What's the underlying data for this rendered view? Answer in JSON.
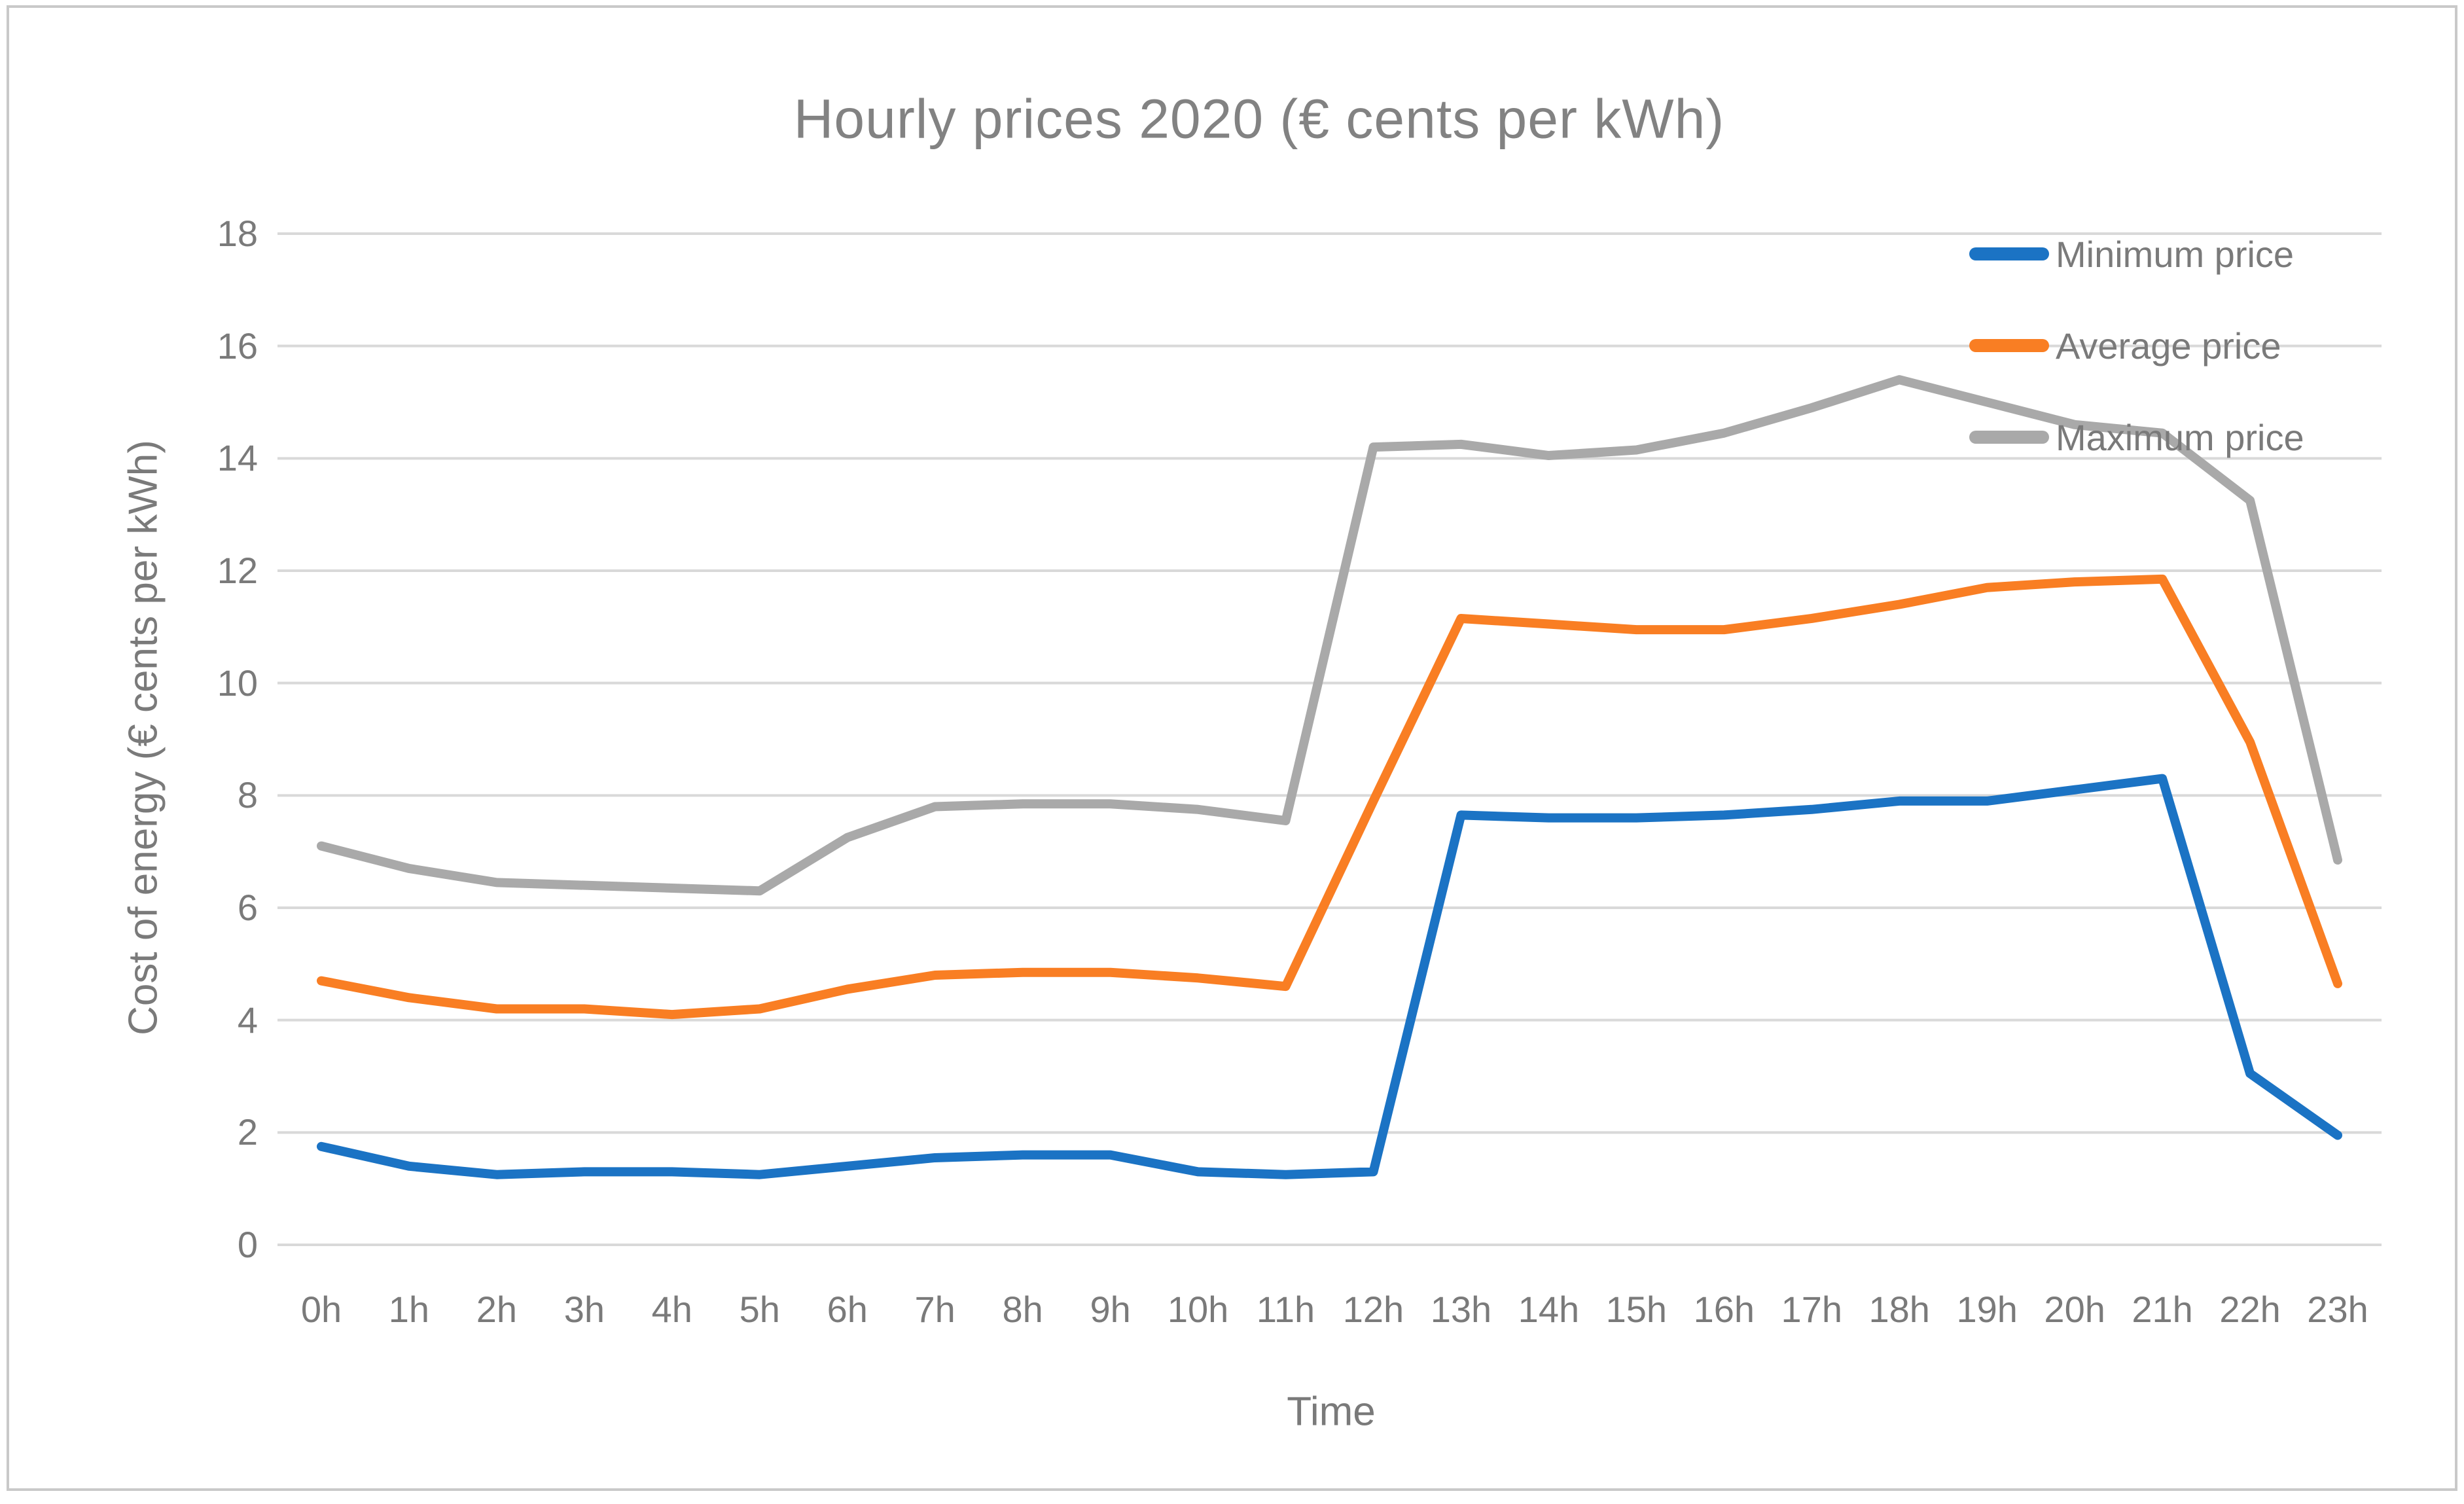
{
  "chart_data": {
    "type": "line",
    "title": "Hourly prices 2020 (€ cents per kWh)",
    "xlabel": "Time",
    "ylabel": "Cost of energy (€ cents per kWh)",
    "ylim": [
      0,
      18
    ],
    "ytick_step": 2,
    "grid": true,
    "legend_position": "top-right",
    "categories": [
      "0h",
      "1h",
      "2h",
      "3h",
      "4h",
      "5h",
      "6h",
      "7h",
      "8h",
      "9h",
      "10h",
      "11h",
      "12h",
      "13h",
      "14h",
      "15h",
      "16h",
      "17h",
      "18h",
      "19h",
      "20h",
      "21h",
      "22h",
      "23h"
    ],
    "series": [
      {
        "name": "Minimum price",
        "color": "#1B73C4",
        "values": [
          1.75,
          1.4,
          1.25,
          1.3,
          1.3,
          1.25,
          1.4,
          1.55,
          1.6,
          1.6,
          1.3,
          1.25,
          1.3,
          7.65,
          7.6,
          7.6,
          7.65,
          7.75,
          7.9,
          7.9,
          8.1,
          8.3,
          3.05,
          1.95
        ]
      },
      {
        "name": "Average price",
        "color": "#F97E23",
        "values": [
          4.7,
          4.4,
          4.2,
          4.2,
          4.1,
          4.2,
          4.55,
          4.8,
          4.85,
          4.85,
          4.75,
          4.6,
          7.9,
          11.15,
          11.05,
          10.95,
          10.95,
          11.15,
          11.4,
          11.7,
          11.8,
          11.85,
          8.95,
          4.65
        ]
      },
      {
        "name": "Maximum price",
        "color": "#A9A9A9",
        "values": [
          7.1,
          6.7,
          6.45,
          6.4,
          6.35,
          6.3,
          7.25,
          7.8,
          7.85,
          7.85,
          7.75,
          7.55,
          14.2,
          14.25,
          14.05,
          14.15,
          14.45,
          14.9,
          15.4,
          15.0,
          14.6,
          14.45,
          13.25,
          6.85
        ]
      }
    ],
    "gridline_color": "#d9d9d9"
  }
}
